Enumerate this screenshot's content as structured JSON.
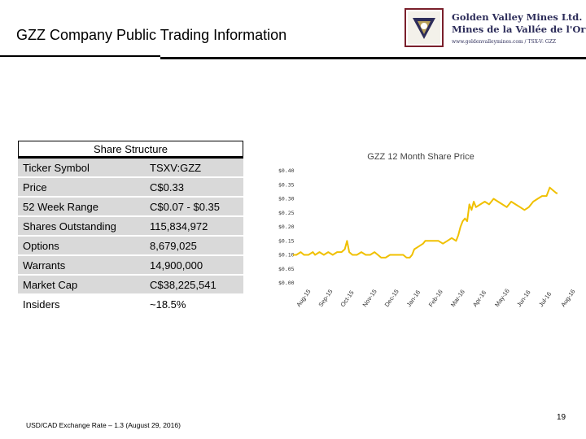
{
  "header": {
    "title": "GZZ Company Public Trading Information"
  },
  "logo": {
    "line1": "Golden Valley Mines Ltd.",
    "line2": "Mines de la Vallée de l'Or ltée",
    "line3": "www.goldenvalleymines.com / TSX-V: GZZ",
    "colors": {
      "frame": "#7a1f2b",
      "text": "#2d2d5a"
    }
  },
  "share_structure": {
    "heading": "Share Structure",
    "rows": [
      {
        "label": "Ticker Symbol",
        "value": "TSXV:GZZ"
      },
      {
        "label": "Price",
        "value": "C$0.33"
      },
      {
        "label": "52 Week Range",
        "value": "C$0.07 - $0.35"
      },
      {
        "label": "Shares Outstanding",
        "value": "115,834,972"
      },
      {
        "label": "Options",
        "value": "8,679,025"
      },
      {
        "label": "Warrants",
        "value": "14,900,000"
      },
      {
        "label": "Market Cap",
        "value": "C$38,225,541"
      },
      {
        "label": "Insiders",
        "value": "~18.5%"
      }
    ]
  },
  "chart_data": {
    "type": "line",
    "title": "GZZ 12 Month Share Price",
    "xlabel": "",
    "ylabel": "",
    "ylim": [
      0,
      0.4
    ],
    "ytick_labels": [
      "$0.00",
      "$0.05",
      "$0.10",
      "$0.15",
      "$0.20",
      "$0.25",
      "$0.30",
      "$0.35",
      "$0.40"
    ],
    "ytick_values": [
      0,
      0.05,
      0.1,
      0.15,
      0.2,
      0.25,
      0.3,
      0.35,
      0.4
    ],
    "categories": [
      "Aug-15",
      "Sep-15",
      "Oct-15",
      "Nov-15",
      "Dec-15",
      "Jan-16",
      "Feb-16",
      "Mar-16",
      "Apr-16",
      "May-16",
      "Jun-16",
      "Jul-16",
      "Aug-16"
    ],
    "grid": false,
    "line_color": "#f0c000",
    "series": [
      {
        "values": [
          [
            0.0,
            0.1
          ],
          [
            0.15,
            0.1
          ],
          [
            0.35,
            0.11
          ],
          [
            0.5,
            0.1
          ],
          [
            0.7,
            0.1
          ],
          [
            0.9,
            0.11
          ],
          [
            1.0,
            0.1
          ],
          [
            1.2,
            0.11
          ],
          [
            1.4,
            0.1
          ],
          [
            1.6,
            0.11
          ],
          [
            1.8,
            0.1
          ],
          [
            2.0,
            0.11
          ],
          [
            2.2,
            0.11
          ],
          [
            2.35,
            0.12
          ],
          [
            2.45,
            0.15
          ],
          [
            2.55,
            0.11
          ],
          [
            2.7,
            0.1
          ],
          [
            2.9,
            0.1
          ],
          [
            3.1,
            0.11
          ],
          [
            3.3,
            0.1
          ],
          [
            3.5,
            0.1
          ],
          [
            3.7,
            0.11
          ],
          [
            3.85,
            0.1
          ],
          [
            4.0,
            0.09
          ],
          [
            4.2,
            0.09
          ],
          [
            4.4,
            0.1
          ],
          [
            4.6,
            0.1
          ],
          [
            4.8,
            0.1
          ],
          [
            5.0,
            0.1
          ],
          [
            5.15,
            0.09
          ],
          [
            5.3,
            0.09
          ],
          [
            5.4,
            0.1
          ],
          [
            5.5,
            0.12
          ],
          [
            5.7,
            0.13
          ],
          [
            5.9,
            0.14
          ],
          [
            6.0,
            0.15
          ],
          [
            6.3,
            0.15
          ],
          [
            6.6,
            0.15
          ],
          [
            6.8,
            0.14
          ],
          [
            7.0,
            0.15
          ],
          [
            7.2,
            0.16
          ],
          [
            7.4,
            0.15
          ],
          [
            7.5,
            0.17
          ],
          [
            7.6,
            0.2
          ],
          [
            7.7,
            0.22
          ],
          [
            7.8,
            0.23
          ],
          [
            7.9,
            0.22
          ],
          [
            8.0,
            0.28
          ],
          [
            8.1,
            0.26
          ],
          [
            8.2,
            0.29
          ],
          [
            8.3,
            0.27
          ],
          [
            8.5,
            0.28
          ],
          [
            8.7,
            0.29
          ],
          [
            8.9,
            0.28
          ],
          [
            9.1,
            0.3
          ],
          [
            9.3,
            0.29
          ],
          [
            9.5,
            0.28
          ],
          [
            9.7,
            0.27
          ],
          [
            9.9,
            0.29
          ],
          [
            10.1,
            0.28
          ],
          [
            10.3,
            0.27
          ],
          [
            10.5,
            0.26
          ],
          [
            10.7,
            0.27
          ],
          [
            10.9,
            0.29
          ],
          [
            11.1,
            0.3
          ],
          [
            11.3,
            0.31
          ],
          [
            11.5,
            0.31
          ],
          [
            11.65,
            0.34
          ],
          [
            11.8,
            0.33
          ],
          [
            11.95,
            0.32
          ],
          [
            12.0,
            0.32
          ]
        ]
      }
    ]
  },
  "footer": {
    "note": "USD/CAD Exchange Rate – 1.3 (August 29, 2016)",
    "page_number": "19"
  }
}
